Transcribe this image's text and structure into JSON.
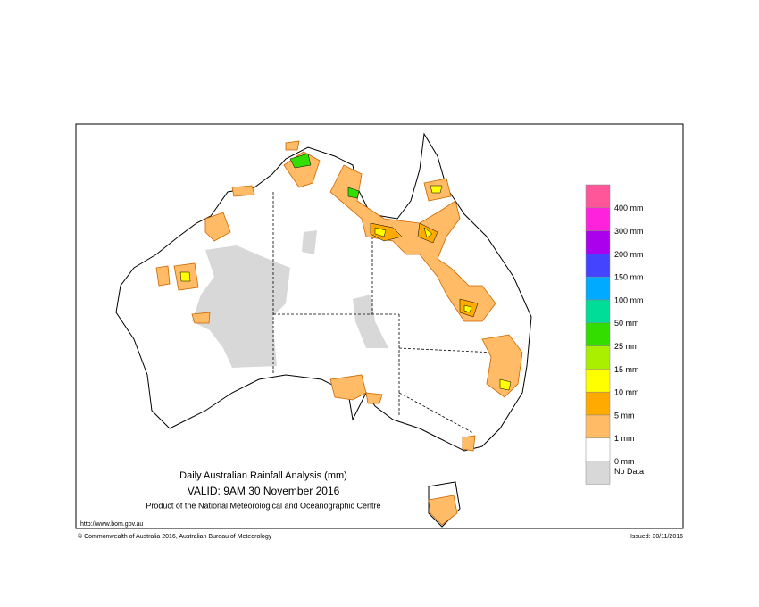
{
  "header": {
    "title": "Daily Australian Rainfall Analysis (mm)",
    "valid": "VALID: 9AM 30 November 2016",
    "product": "Product of the National Meteorological and Oceanographic Centre"
  },
  "footer": {
    "url": "http://www.bom.gov.au",
    "copyright": "© Commonwealth of Australia 2016, Australian Bureau of Meteorology",
    "issued": "Issued: 30/11/2016"
  },
  "legend": [
    {
      "label": "400 mm",
      "color": "#ff5599"
    },
    {
      "label": "300 mm",
      "color": "#ff22dd"
    },
    {
      "label": "200 mm",
      "color": "#aa00ee"
    },
    {
      "label": "150 mm",
      "color": "#4444ff"
    },
    {
      "label": "100 mm",
      "color": "#00aaff"
    },
    {
      "label": "50 mm",
      "color": "#00dd99"
    },
    {
      "label": "25 mm",
      "color": "#33dd00"
    },
    {
      "label": "15 mm",
      "color": "#aaee00"
    },
    {
      "label": "10 mm",
      "color": "#ffff00"
    },
    {
      "label": "5 mm",
      "color": "#ffaa00"
    },
    {
      "label": "1 mm",
      "color": "#ffbb66"
    },
    {
      "label": "0 mm",
      "color": "#ffffff"
    },
    {
      "label": "No Data",
      "color": "#d8d8d8"
    }
  ]
}
